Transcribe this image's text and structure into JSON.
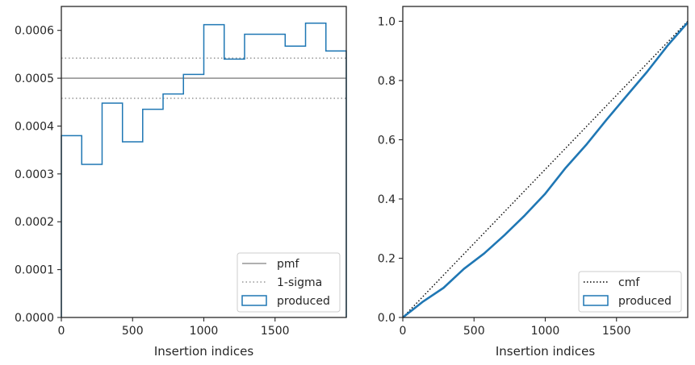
{
  "chart_data": [
    {
      "type": "histogram-step",
      "xlabel": "Insertion indices",
      "ylabel": "",
      "xlim": [
        0,
        2000
      ],
      "ylim": [
        0,
        0.00065
      ],
      "xticks": [
        0,
        500,
        1000,
        1500
      ],
      "xtick_labels": [
        "0",
        "500",
        "1000",
        "1500"
      ],
      "yticks": [
        0,
        0.0001,
        0.0002,
        0.0003,
        0.0004,
        0.0005,
        0.0006
      ],
      "ytick_labels": [
        "0.0000",
        "0.0001",
        "0.0002",
        "0.0003",
        "0.0004",
        "0.0005",
        "0.0006"
      ],
      "bin_edges": [
        0,
        143,
        286,
        429,
        571,
        714,
        857,
        1000,
        1143,
        1286,
        1429,
        1571,
        1714,
        1857,
        2000
      ],
      "series": [
        {
          "name": "produced",
          "color": "#1f77b4",
          "values": [
            0.00038,
            0.00032,
            0.000448,
            0.000367,
            0.000435,
            0.000467,
            0.000508,
            0.000612,
            0.00054,
            0.000592,
            0.000592,
            0.000567,
            0.000615,
            0.000557
          ]
        }
      ],
      "reference_lines": [
        {
          "name": "pmf",
          "value": 0.0005,
          "style": "solid",
          "color": "#808080"
        },
        {
          "name": "1-sigma",
          "values": [
            0.000542,
            0.000458
          ],
          "style": "dotted",
          "color": "#808080"
        }
      ],
      "legend": {
        "position": "bottom-right",
        "entries": [
          "pmf",
          "1-sigma",
          "produced"
        ]
      }
    },
    {
      "type": "line",
      "xlabel": "Insertion indices",
      "ylabel": "",
      "xlim": [
        0,
        2000
      ],
      "ylim": [
        0,
        1.05
      ],
      "xticks": [
        0,
        500,
        1000,
        1500
      ],
      "xtick_labels": [
        "0",
        "500",
        "1000",
        "1500"
      ],
      "yticks": [
        0,
        0.2,
        0.4,
        0.6,
        0.8,
        1.0
      ],
      "ytick_labels": [
        "0.0",
        "0.2",
        "0.4",
        "0.6",
        "0.8",
        "1.0"
      ],
      "series": [
        {
          "name": "cmf",
          "style": "dotted",
          "color": "#000000",
          "x": [
            0,
            2000
          ],
          "y": [
            0,
            1.0
          ]
        },
        {
          "name": "produced",
          "style": "solid",
          "color": "#1f77b4",
          "x": [
            0,
            143,
            286,
            429,
            571,
            714,
            857,
            1000,
            1143,
            1286,
            1429,
            1571,
            1714,
            1857,
            2000
          ],
          "y": [
            0,
            0.054,
            0.1,
            0.164,
            0.216,
            0.278,
            0.345,
            0.418,
            0.505,
            0.582,
            0.667,
            0.748,
            0.829,
            0.917,
            0.996
          ]
        }
      ],
      "legend": {
        "position": "bottom-right",
        "entries": [
          "cmf",
          "produced"
        ]
      }
    }
  ]
}
